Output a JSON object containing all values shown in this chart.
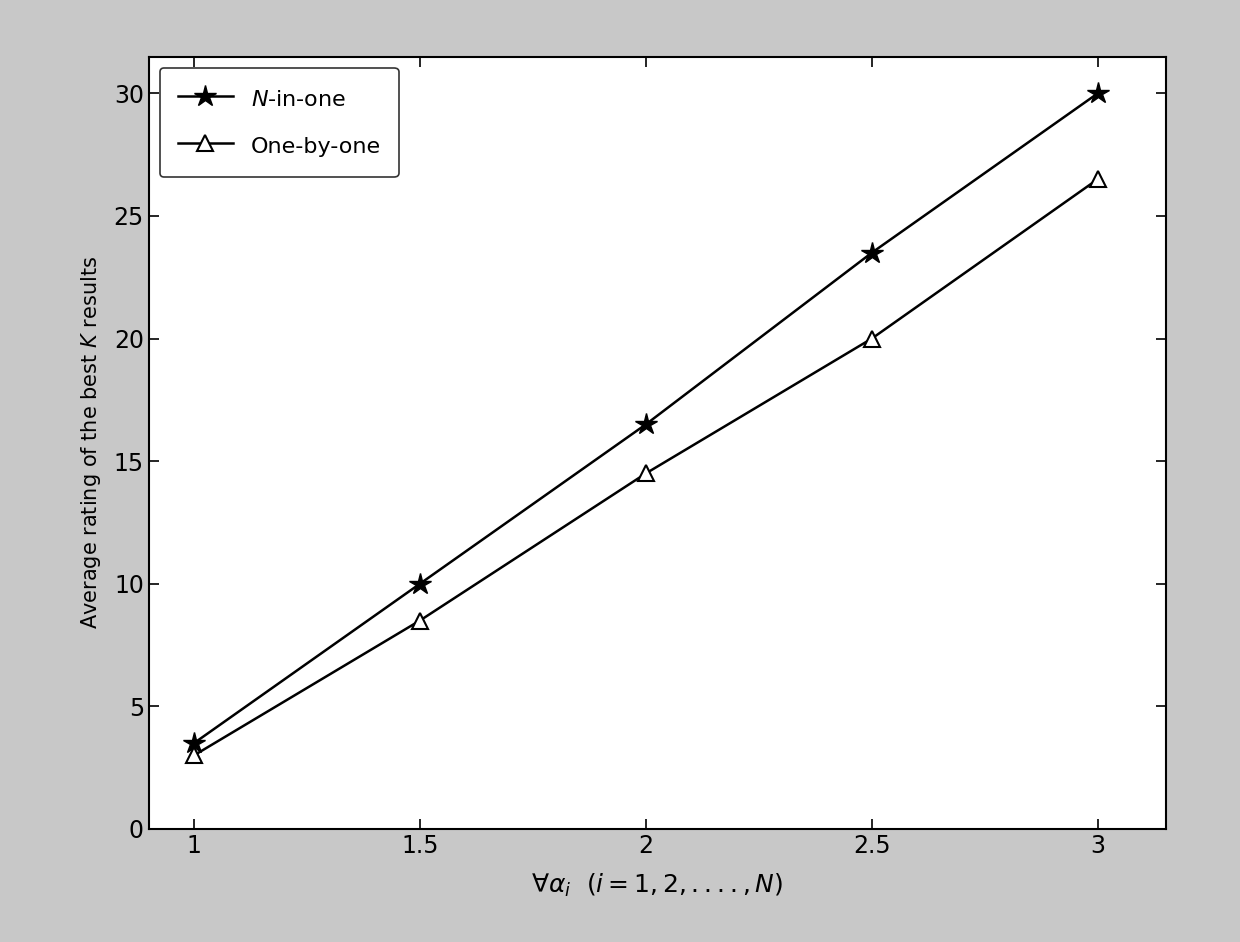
{
  "x": [
    1,
    1.5,
    2,
    2.5,
    3
  ],
  "n_in_one": [
    3.5,
    10.0,
    16.5,
    23.5,
    30.0
  ],
  "one_by_one": [
    3.0,
    8.5,
    14.5,
    20.0,
    26.5
  ],
  "xlabel": "$\\forall \\alpha_{i}$  $(i=1,2,....,N)$",
  "ylabel": "Average rating of the best $K$ results",
  "xlim": [
    0.9,
    3.15
  ],
  "ylim": [
    0,
    31.5
  ],
  "xticks": [
    1,
    1.5,
    2,
    2.5,
    3
  ],
  "yticks": [
    0,
    5,
    10,
    15,
    20,
    25,
    30
  ],
  "line_color": "#000000",
  "legend_n_in_one": "$N$-in-one",
  "legend_one_by_one": "One-by-one",
  "background_color": "#ffffff",
  "figure_bg": "#ffffff",
  "outer_bg": "#c8c8c8"
}
